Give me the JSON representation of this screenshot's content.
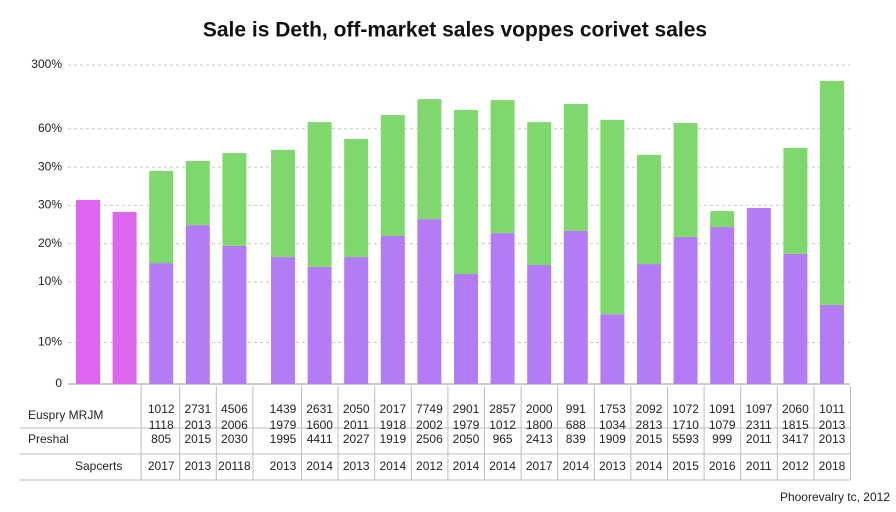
{
  "chart_data": {
    "type": "bar",
    "stacked": true,
    "title": "Sale is Deth, off-market sales voppes corivet sales",
    "categories": [
      null,
      null,
      null,
      null,
      null,
      null,
      null,
      null,
      null,
      null,
      null,
      null,
      null,
      null,
      null,
      null,
      null,
      null,
      null,
      null,
      null
    ],
    "series": [
      {
        "color": "#dd66ee",
        "values": [
          57.7,
          53.9,
          null,
          null,
          null,
          null,
          null,
          null,
          null,
          null,
          null,
          null,
          null,
          null,
          null,
          null,
          null,
          null,
          null,
          null,
          null
        ]
      },
      {
        "color": "#b47cf4",
        "values": [
          null,
          null,
          37.9,
          49.8,
          43.3,
          39.8,
          36.7,
          39.8,
          46.4,
          51.7,
          34.5,
          47.3,
          37.3,
          48.0,
          21.9,
          37.6,
          46.1,
          49.2,
          55.2,
          40.8,
          24.8
        ]
      },
      {
        "color": "#7fd86e",
        "values": [
          null,
          null,
          28.9,
          20.1,
          29.1,
          33.6,
          45.4,
          37.0,
          37.9,
          37.6,
          51.4,
          41.7,
          44.8,
          39.8,
          60.9,
          34.2,
          35.7,
          5.0,
          0,
          33.2,
          70.2
        ]
      }
    ],
    "ylim": [
      0,
      100
    ],
    "yticks": [
      0,
      {
        "value": 13,
        "label": "10%"
      },
      {
        "value": 32,
        "label": "10%"
      },
      {
        "value": 44,
        "label": "20%"
      },
      {
        "value": 56,
        "label": "30%"
      },
      {
        "value": 68,
        "label": "30%"
      },
      {
        "value": 80,
        "label": "60%"
      },
      {
        "value": 100,
        "label": "300%"
      }
    ],
    "grid": true
  },
  "table": {
    "rows": [
      {
        "label": "Euspry MRJM",
        "lines": [
          [
            1012,
            2731,
            4506,
            1439,
            2631,
            2050,
            2017,
            7749,
            2901,
            2857,
            2000,
            991,
            1753,
            2092,
            1072,
            1091,
            1097,
            2060,
            1011
          ],
          [
            1118,
            2013,
            2006,
            1979,
            1600,
            2011,
            1918,
            2002,
            1979,
            1012,
            1800,
            688,
            1034,
            2813,
            1710,
            1079,
            2311,
            1815,
            2013
          ]
        ]
      },
      {
        "label": "Preshal",
        "lines": [
          [
            805,
            2015,
            2030,
            1995,
            4411,
            2027,
            1919,
            2506,
            2050,
            965,
            2413,
            839,
            1909,
            2015,
            5593,
            999,
            2011,
            3417,
            2013
          ]
        ]
      },
      {
        "label": "Sapcerts",
        "lines": [
          [
            2017,
            2013,
            20118,
            2013,
            2014,
            2013,
            2014,
            2012,
            2014,
            2014,
            2017,
            2014,
            2013,
            2014,
            2015,
            2016,
            2011,
            2012,
            2018
          ]
        ]
      }
    ]
  },
  "footer": "Phoorevalry tc, 2012"
}
